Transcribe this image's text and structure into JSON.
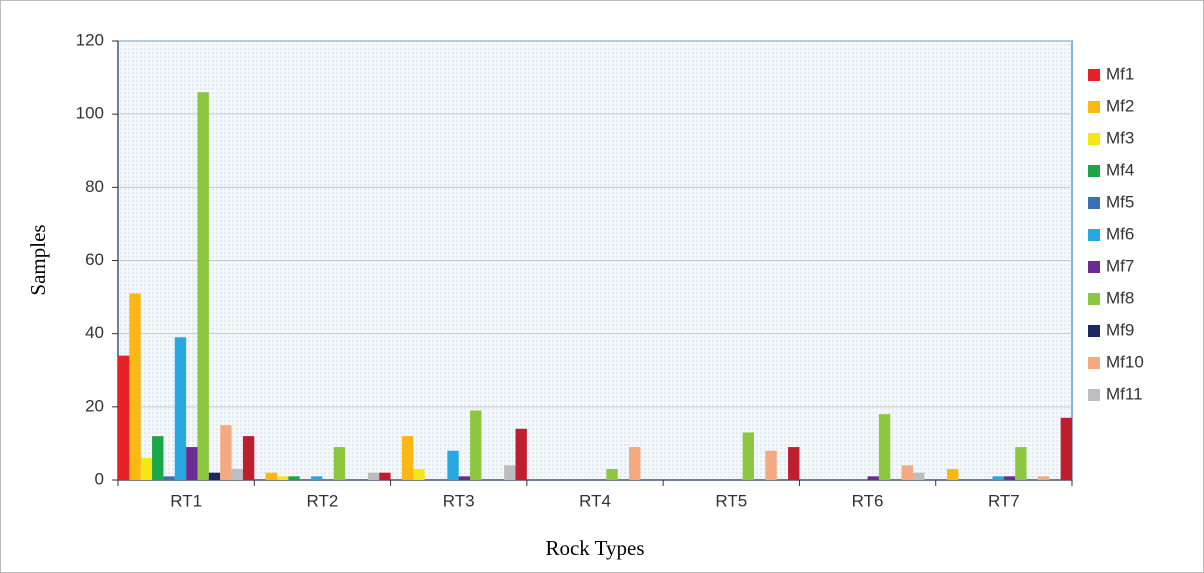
{
  "chart_data": {
    "type": "bar",
    "x_label": "Rock Types",
    "y_label": "Samples",
    "categories": [
      "RT1",
      "RT2",
      "RT3",
      "RT4",
      "RT5",
      "RT6",
      "RT7"
    ],
    "ylim": [
      0,
      120
    ],
    "yticks": [
      0,
      20,
      40,
      60,
      80,
      100,
      120
    ],
    "grid": true,
    "legend": "right",
    "series": [
      {
        "name": "Mf1",
        "color": "#e8202a",
        "values": [
          34,
          0,
          0,
          0,
          0,
          0,
          0
        ]
      },
      {
        "name": "Mf2",
        "color": "#fbb714",
        "values": [
          51,
          2,
          12,
          0,
          0,
          0,
          3
        ]
      },
      {
        "name": "Mf3",
        "color": "#f4e714",
        "values": [
          6,
          1,
          3,
          0,
          0,
          0,
          0
        ]
      },
      {
        "name": "Mf4",
        "color": "#1aa64a",
        "values": [
          12,
          1,
          0,
          0,
          0,
          0,
          0
        ]
      },
      {
        "name": "Mf5",
        "color": "#3d6fb6",
        "values": [
          1,
          0,
          0,
          0,
          0,
          0,
          0
        ]
      },
      {
        "name": "Mf6",
        "color": "#25a9e0",
        "values": [
          39,
          1,
          8,
          0,
          0,
          0,
          1
        ]
      },
      {
        "name": "Mf7",
        "color": "#6a2c91",
        "values": [
          9,
          0,
          1,
          0,
          0,
          1,
          1
        ]
      },
      {
        "name": "Mf8",
        "color": "#8dc63f",
        "values": [
          106,
          9,
          19,
          3,
          13,
          18,
          9
        ]
      },
      {
        "name": "Mf9",
        "color": "#1b2a5e",
        "values": [
          2,
          0,
          0,
          0,
          0,
          0,
          0
        ]
      },
      {
        "name": "Mf10",
        "color": "#f4a983",
        "values": [
          15,
          0,
          0,
          9,
          8,
          4,
          1
        ]
      },
      {
        "name": "Mf11",
        "color": "#bcbdc0",
        "values": [
          3,
          2,
          4,
          0,
          0,
          2,
          0
        ]
      },
      {
        "color": "#be1e2d",
        "values": [
          12,
          2,
          14,
          0,
          9,
          0,
          17
        ]
      }
    ]
  }
}
